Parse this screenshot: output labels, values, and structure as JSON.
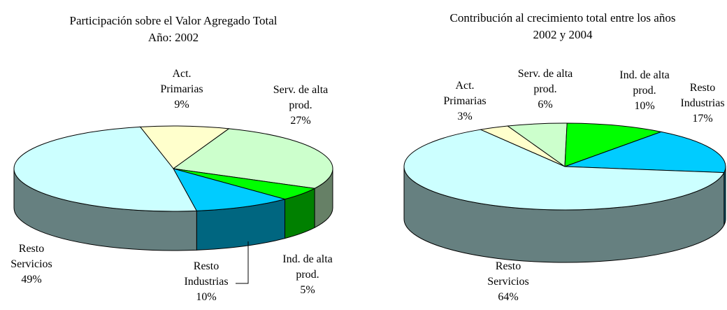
{
  "chart_data": [
    {
      "type": "pie",
      "title": "Participación sobre el Valor Agregado Total",
      "subtitle": "Año: 2002",
      "categories": [
        "Act. Primarias",
        "Serv. de alta prod.",
        "Ind. de alta prod.",
        "Resto Industrias",
        "Resto Servicios"
      ],
      "values": [
        9,
        27,
        5,
        10,
        49
      ],
      "value_labels": [
        "9%",
        "27%",
        "5%",
        "10%",
        "49%"
      ],
      "colors": [
        "#ffffcc",
        "#ccffcc",
        "#00ff00",
        "#00ccff",
        "#ccffff"
      ]
    },
    {
      "type": "pie",
      "title": "Contribución al crecimiento total entre los años 2002 y 2004",
      "categories": [
        "Act. Primarias",
        "Serv. de alta prod.",
        "Ind. de alta prod.",
        "Resto Industrias",
        "Resto Servicios"
      ],
      "values": [
        3,
        6,
        10,
        17,
        64
      ],
      "value_labels": [
        "3%",
        "6%",
        "10%",
        "17%",
        "64%"
      ],
      "colors": [
        "#ffffcc",
        "#ccffcc",
        "#00ff00",
        "#00ccff",
        "#ccffff"
      ]
    }
  ]
}
